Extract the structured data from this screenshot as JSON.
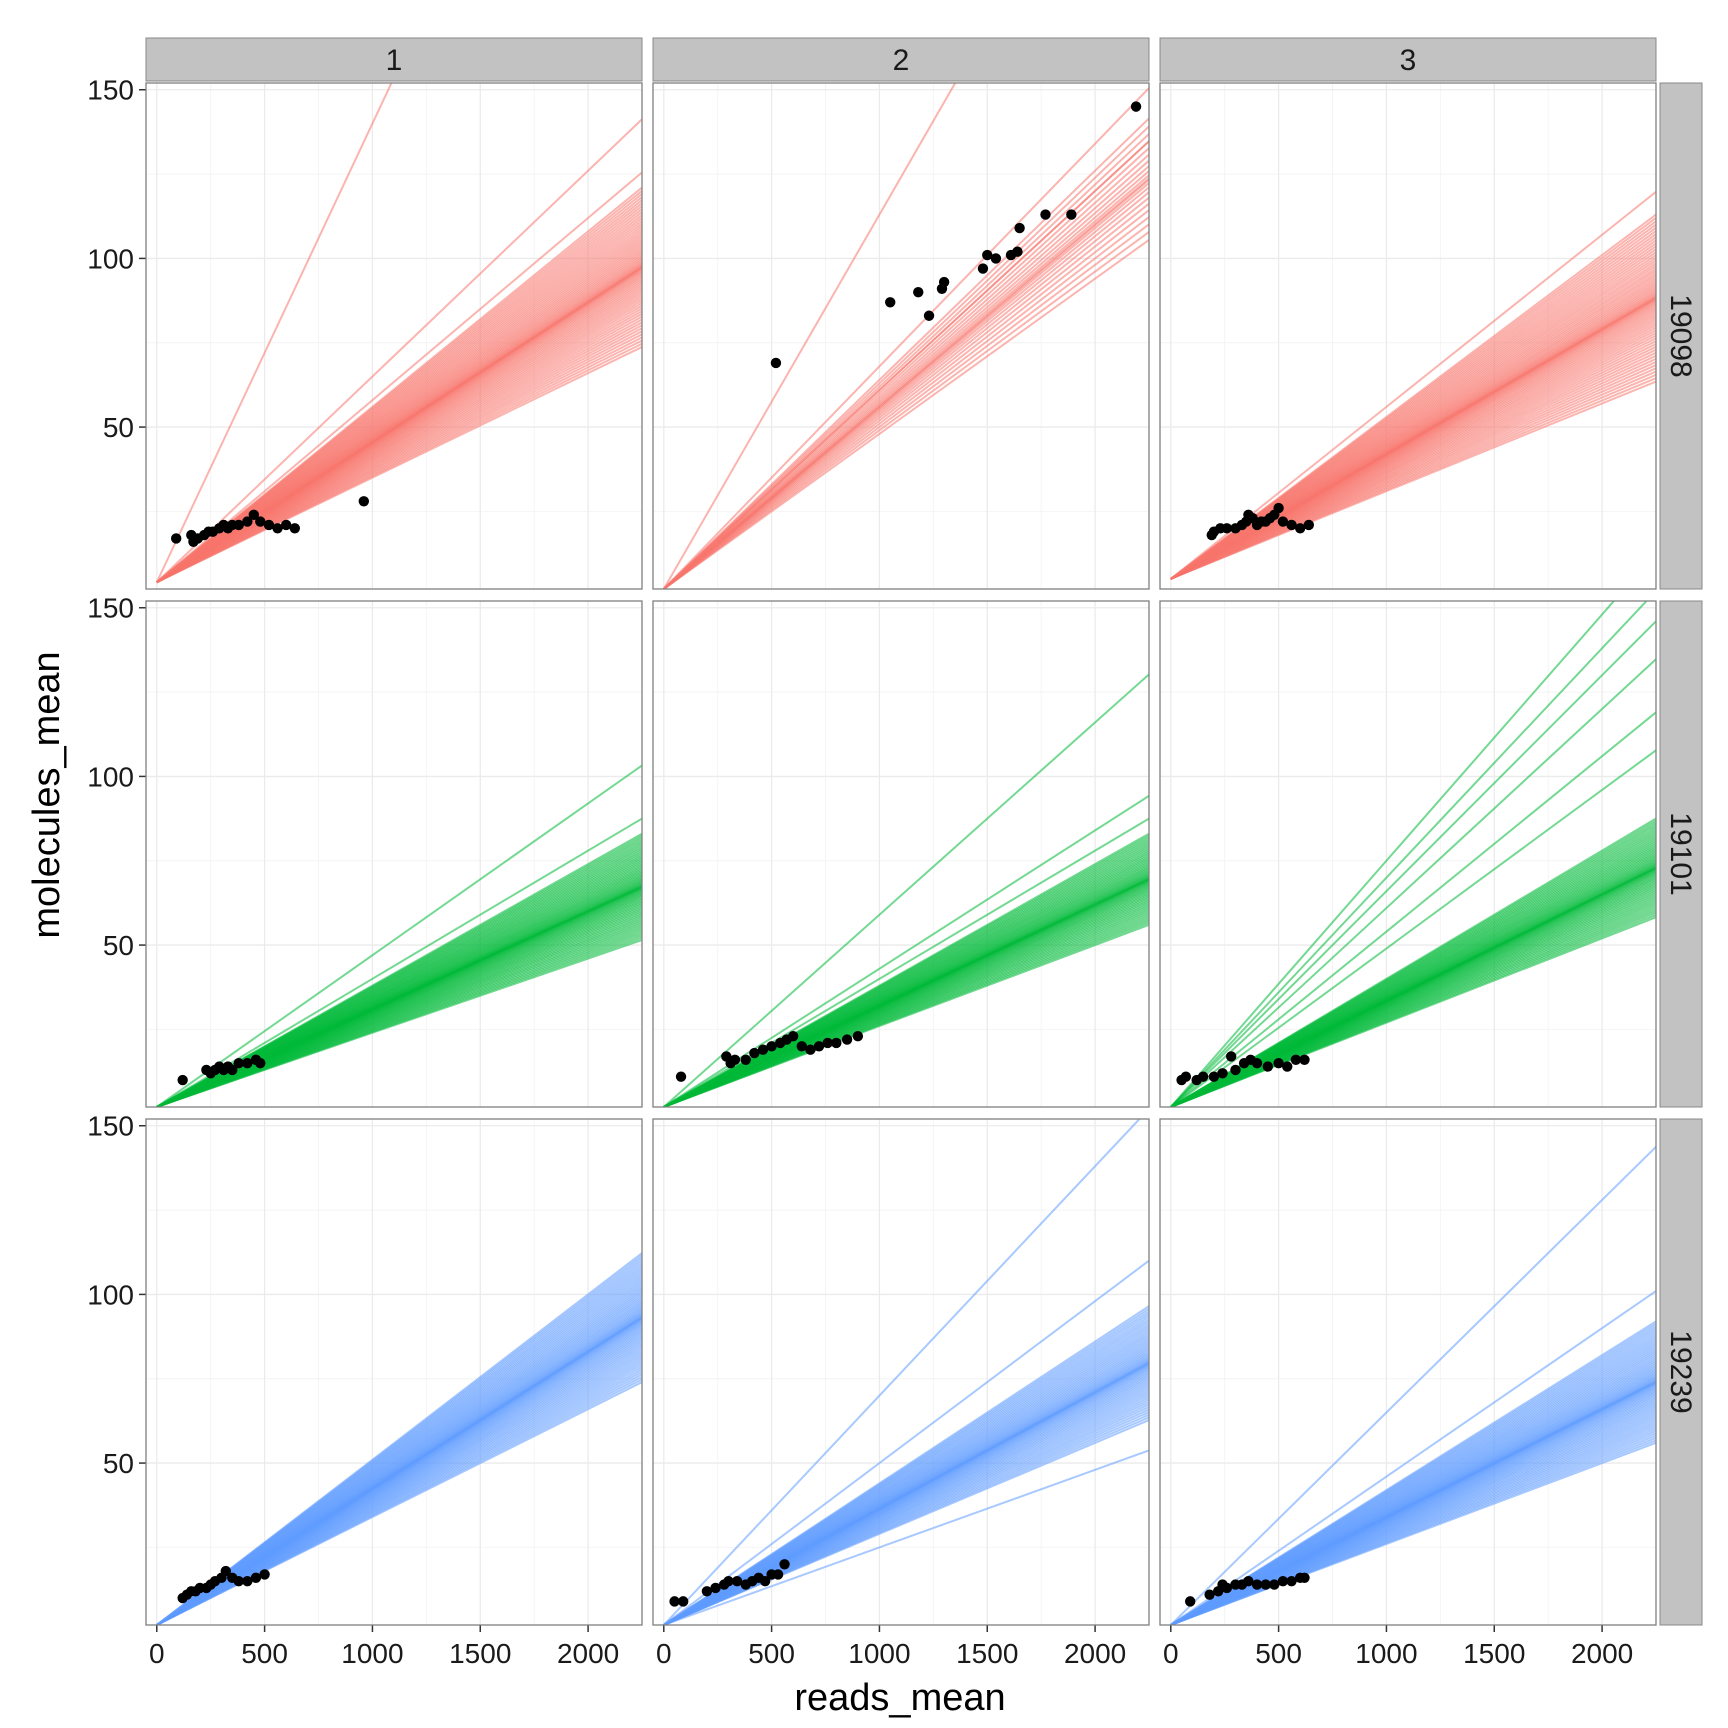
{
  "chart_data": {
    "type": "faceted-scatter-with-fit-lines",
    "xlabel": "reads_mean",
    "ylabel": "molecules_mean",
    "xlim": [
      -50,
      2250
    ],
    "ylim": [
      2,
      152
    ],
    "x_ticks": [
      0,
      500,
      1000,
      1500,
      2000
    ],
    "y_ticks": [
      50,
      100,
      150
    ],
    "grid": true,
    "background": "#ffffff",
    "grid_color": "#ebebeb",
    "strip_color": "#c2c2c2",
    "point_color": "#000000",
    "col_facets": [
      "1",
      "2",
      "3"
    ],
    "row_facets": [
      {
        "label": "19098",
        "color": "#f8766d"
      },
      {
        "label": "19101",
        "color": "#00ba38"
      },
      {
        "label": "19239",
        "color": "#619cff"
      }
    ],
    "panels": [
      {
        "row": "19098",
        "col": "1",
        "lines": {
          "intercept": 4,
          "n": 70,
          "slope_min": 0.031,
          "slope_max": 0.052,
          "extra_slopes": [
            0.061,
            0.054,
            0.136
          ]
        },
        "points": [
          [
            90,
            17
          ],
          [
            160,
            18
          ],
          [
            170,
            16
          ],
          [
            190,
            17
          ],
          [
            220,
            18
          ],
          [
            240,
            19
          ],
          [
            260,
            19
          ],
          [
            290,
            20
          ],
          [
            310,
            21
          ],
          [
            330,
            20
          ],
          [
            350,
            21
          ],
          [
            380,
            21
          ],
          [
            420,
            22
          ],
          [
            450,
            24
          ],
          [
            480,
            22
          ],
          [
            520,
            21
          ],
          [
            560,
            20
          ],
          [
            600,
            21
          ],
          [
            640,
            20
          ],
          [
            960,
            28
          ]
        ]
      },
      {
        "row": "19098",
        "col": "2",
        "lines": {
          "intercept": 2,
          "n": 22,
          "slope_min": 0.046,
          "slope_max": 0.062,
          "extra_slopes": [
            0.111,
            0.066,
            0.059
          ]
        },
        "points": [
          [
            520,
            69
          ],
          [
            1050,
            87
          ],
          [
            1180,
            90
          ],
          [
            1230,
            83
          ],
          [
            1290,
            91
          ],
          [
            1300,
            93
          ],
          [
            1480,
            97
          ],
          [
            1500,
            101
          ],
          [
            1540,
            100
          ],
          [
            1610,
            101
          ],
          [
            1640,
            102
          ],
          [
            1650,
            109
          ],
          [
            1770,
            113
          ],
          [
            1890,
            113
          ],
          [
            2190,
            145
          ]
        ]
      },
      {
        "row": "19098",
        "col": "3",
        "lines": {
          "intercept": 5,
          "n": 70,
          "slope_min": 0.026,
          "slope_max": 0.048,
          "extra_slopes": [
            0.051
          ]
        },
        "points": [
          [
            190,
            18
          ],
          [
            200,
            19
          ],
          [
            230,
            20
          ],
          [
            260,
            20
          ],
          [
            300,
            20
          ],
          [
            330,
            21
          ],
          [
            350,
            22
          ],
          [
            360,
            24
          ],
          [
            380,
            23
          ],
          [
            400,
            21
          ],
          [
            420,
            22
          ],
          [
            440,
            22
          ],
          [
            460,
            23
          ],
          [
            480,
            24
          ],
          [
            500,
            26
          ],
          [
            520,
            22
          ],
          [
            560,
            21
          ],
          [
            600,
            20
          ],
          [
            640,
            21
          ]
        ]
      },
      {
        "row": "19101",
        "col": "1",
        "lines": {
          "intercept": 2,
          "n": 70,
          "slope_min": 0.022,
          "slope_max": 0.036,
          "extra_slopes": [
            0.038,
            0.045
          ]
        },
        "points": [
          [
            120,
            10
          ],
          [
            230,
            13
          ],
          [
            250,
            12
          ],
          [
            270,
            13
          ],
          [
            290,
            14
          ],
          [
            310,
            13
          ],
          [
            330,
            14
          ],
          [
            350,
            13
          ],
          [
            380,
            15
          ],
          [
            420,
            15
          ],
          [
            460,
            16
          ],
          [
            480,
            15
          ]
        ]
      },
      {
        "row": "19101",
        "col": "2",
        "lines": {
          "intercept": 2,
          "n": 60,
          "slope_min": 0.024,
          "slope_max": 0.036,
          "extra_slopes": [
            0.038,
            0.041,
            0.057
          ]
        },
        "points": [
          [
            80,
            11
          ],
          [
            290,
            17
          ],
          [
            310,
            15
          ],
          [
            330,
            16
          ],
          [
            380,
            16
          ],
          [
            420,
            18
          ],
          [
            460,
            19
          ],
          [
            500,
            20
          ],
          [
            540,
            21
          ],
          [
            570,
            22
          ],
          [
            600,
            23
          ],
          [
            640,
            20
          ],
          [
            680,
            19
          ],
          [
            720,
            20
          ],
          [
            760,
            21
          ],
          [
            800,
            21
          ],
          [
            850,
            22
          ],
          [
            900,
            23
          ]
        ]
      },
      {
        "row": "19101",
        "col": "3",
        "lines": {
          "intercept": 2,
          "n": 60,
          "slope_min": 0.025,
          "slope_max": 0.038,
          "extra_slopes": [
            0.047,
            0.052,
            0.059,
            0.064,
            0.068,
            0.073
          ]
        },
        "points": [
          [
            50,
            10
          ],
          [
            70,
            11
          ],
          [
            120,
            10
          ],
          [
            150,
            11
          ],
          [
            200,
            11
          ],
          [
            240,
            12
          ],
          [
            280,
            17
          ],
          [
            300,
            13
          ],
          [
            340,
            15
          ],
          [
            370,
            16
          ],
          [
            400,
            15
          ],
          [
            450,
            14
          ],
          [
            500,
            15
          ],
          [
            540,
            14
          ],
          [
            580,
            16
          ],
          [
            620,
            16
          ]
        ]
      },
      {
        "row": "19239",
        "col": "1",
        "lines": {
          "intercept": 2,
          "n": 70,
          "slope_min": 0.032,
          "slope_max": 0.049,
          "extra_slopes": []
        },
        "points": [
          [
            120,
            10
          ],
          [
            140,
            11
          ],
          [
            160,
            12
          ],
          [
            180,
            12
          ],
          [
            200,
            13
          ],
          [
            230,
            13
          ],
          [
            250,
            14
          ],
          [
            270,
            15
          ],
          [
            300,
            16
          ],
          [
            320,
            18
          ],
          [
            350,
            16
          ],
          [
            380,
            15
          ],
          [
            420,
            15
          ],
          [
            460,
            16
          ],
          [
            500,
            17
          ]
        ]
      },
      {
        "row": "19239",
        "col": "2",
        "lines": {
          "intercept": 2,
          "n": 60,
          "slope_min": 0.027,
          "slope_max": 0.042,
          "extra_slopes": [
            0.023,
            0.048,
            0.068
          ]
        },
        "points": [
          [
            50,
            9
          ],
          [
            90,
            9
          ],
          [
            200,
            12
          ],
          [
            240,
            13
          ],
          [
            280,
            14
          ],
          [
            300,
            15
          ],
          [
            340,
            15
          ],
          [
            380,
            14
          ],
          [
            410,
            15
          ],
          [
            440,
            16
          ],
          [
            470,
            15
          ],
          [
            500,
            17
          ],
          [
            530,
            17
          ],
          [
            560,
            20
          ]
        ]
      },
      {
        "row": "19239",
        "col": "3",
        "lines": {
          "intercept": 2,
          "n": 70,
          "slope_min": 0.024,
          "slope_max": 0.04,
          "extra_slopes": [
            0.044,
            0.063
          ]
        },
        "points": [
          [
            90,
            9
          ],
          [
            180,
            11
          ],
          [
            220,
            12
          ],
          [
            240,
            14
          ],
          [
            260,
            13
          ],
          [
            300,
            14
          ],
          [
            330,
            14
          ],
          [
            360,
            15
          ],
          [
            400,
            14
          ],
          [
            440,
            14
          ],
          [
            480,
            14
          ],
          [
            520,
            15
          ],
          [
            560,
            15
          ],
          [
            600,
            16
          ],
          [
            620,
            16
          ]
        ]
      }
    ]
  }
}
